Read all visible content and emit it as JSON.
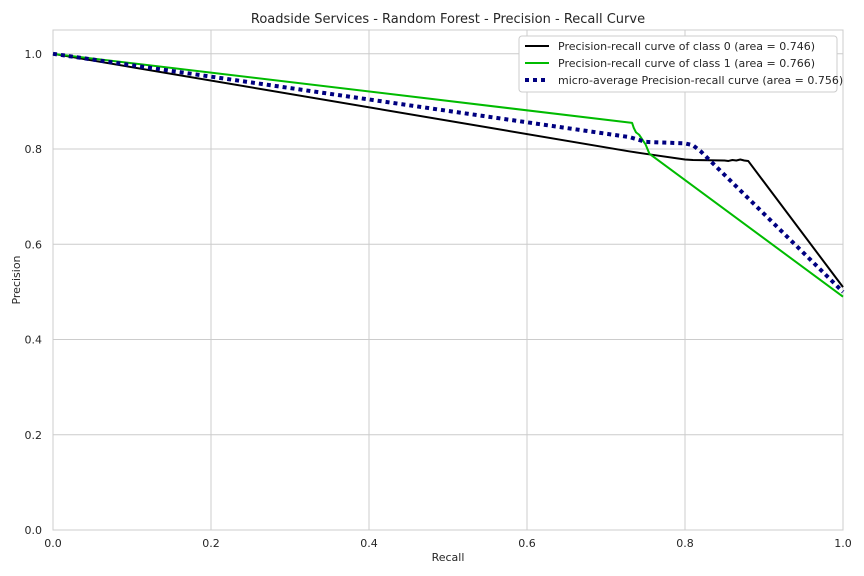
{
  "chart_data": {
    "type": "line",
    "title": "Roadside Services - Random Forest - Precision - Recall Curve",
    "xlabel": "Recall",
    "ylabel": "Precision",
    "xlim": [
      0.0,
      1.0
    ],
    "ylim": [
      0.0,
      1.05
    ],
    "xticks": [
      "0.0",
      "0.2",
      "0.4",
      "0.6",
      "0.8",
      "1.0"
    ],
    "yticks": [
      "0.0",
      "0.2",
      "0.4",
      "0.6",
      "0.8",
      "1.0"
    ],
    "grid": true,
    "legend_position": "top-right",
    "series": [
      {
        "name": "Precision-recall curve of class 0 (area = 0.746)",
        "color": "#000000",
        "style": "solid",
        "x": [
          0.0,
          0.73,
          0.75,
          0.8,
          0.81,
          0.85,
          0.855,
          0.86,
          0.865,
          0.87,
          0.875,
          0.88,
          1.0
        ],
        "y": [
          1.0,
          0.795,
          0.79,
          0.778,
          0.777,
          0.776,
          0.775,
          0.777,
          0.776,
          0.778,
          0.776,
          0.775,
          0.51
        ]
      },
      {
        "name": "Precision-recall curve of class 1 (area = 0.766)",
        "color": "#00bb00",
        "style": "solid",
        "x": [
          0.0,
          0.733,
          0.735,
          0.738,
          0.742,
          0.75,
          0.755,
          1.0
        ],
        "y": [
          1.0,
          0.855,
          0.845,
          0.835,
          0.83,
          0.81,
          0.79,
          0.49
        ]
      },
      {
        "name": "micro-average Precision-recall curve (area = 0.756)",
        "color": "#000080",
        "style": "dotted",
        "x": [
          0.0,
          0.73,
          0.75,
          0.8,
          0.81,
          0.82,
          1.0
        ],
        "y": [
          1.0,
          0.825,
          0.815,
          0.812,
          0.808,
          0.795,
          0.5
        ]
      }
    ]
  }
}
